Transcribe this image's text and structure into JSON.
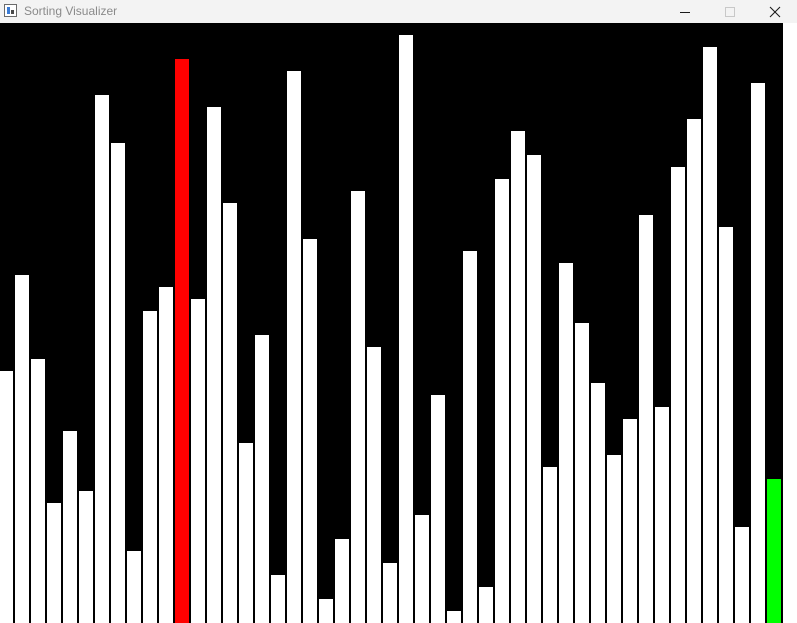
{
  "window": {
    "title": "Sorting Visualizer",
    "controls": {
      "minimize_icon": "minimize-icon",
      "maximize_icon": "maximize-icon",
      "close_icon": "close-icon"
    }
  },
  "visualizer": {
    "max_value": 600,
    "colors": {
      "background": "#000000",
      "bar": "#ffffff",
      "active": "#ff0000",
      "sorted": "#00ff00"
    },
    "values": [
      252,
      348,
      264,
      120,
      192,
      132,
      528,
      480,
      72,
      312,
      336,
      564,
      324,
      516,
      420,
      180,
      288,
      48,
      552,
      384,
      24,
      84,
      432,
      276,
      60,
      588,
      108,
      228,
      12,
      372,
      36,
      444,
      492,
      468,
      156,
      360,
      300,
      240,
      168,
      204,
      408,
      216,
      456,
      504,
      576,
      396,
      96,
      540,
      144
    ],
    "bar_states": [
      "normal",
      "normal",
      "normal",
      "normal",
      "normal",
      "normal",
      "normal",
      "normal",
      "normal",
      "normal",
      "normal",
      "active",
      "normal",
      "normal",
      "normal",
      "normal",
      "normal",
      "normal",
      "normal",
      "normal",
      "normal",
      "normal",
      "normal",
      "normal",
      "normal",
      "normal",
      "normal",
      "normal",
      "normal",
      "normal",
      "normal",
      "normal",
      "normal",
      "normal",
      "normal",
      "normal",
      "normal",
      "normal",
      "normal",
      "normal",
      "normal",
      "normal",
      "normal",
      "normal",
      "normal",
      "normal",
      "normal",
      "normal",
      "sorted"
    ]
  }
}
